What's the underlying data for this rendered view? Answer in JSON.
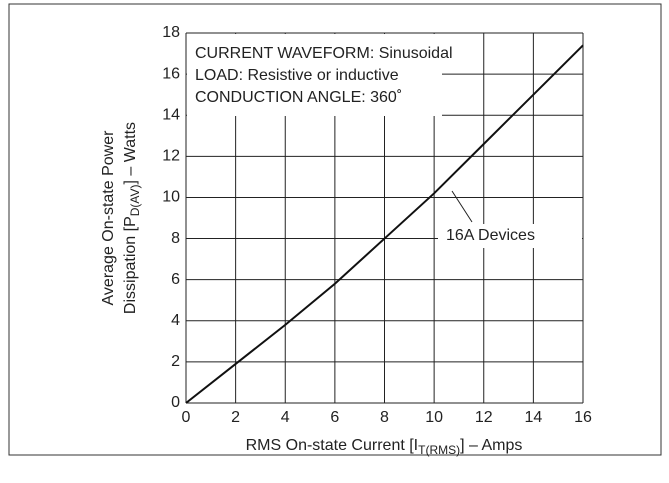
{
  "chart_data": {
    "type": "line",
    "annotations": [
      "CURRENT WAVEFORM: Sinusoidal",
      "LOAD: Resistive or inductive",
      "CONDUCTION ANGLE: 360˚"
    ],
    "series_label": "16A Devices",
    "x_label": {
      "main": "RMS On-state Current [I",
      "sub": "T(RMS)",
      "end": "] – Amps"
    },
    "y_label": {
      "line1": "Average On-state Power",
      "main": "Dissipation [P",
      "sub": "D(AV)",
      "end": "] – Watts"
    },
    "x": [
      0,
      2,
      4,
      6,
      8,
      10,
      12,
      14,
      16
    ],
    "values": [
      0,
      1.9,
      3.8,
      5.8,
      8.0,
      10.2,
      12.6,
      15.0,
      17.4
    ],
    "color": "#111111",
    "xlim": [
      0,
      16
    ],
    "xticks": [
      0,
      2,
      4,
      6,
      8,
      10,
      12,
      14,
      16
    ],
    "ylim": [
      0,
      18
    ],
    "yticks": [
      0,
      2,
      4,
      6,
      8,
      10,
      12,
      14,
      16,
      18
    ],
    "grid": true
  }
}
